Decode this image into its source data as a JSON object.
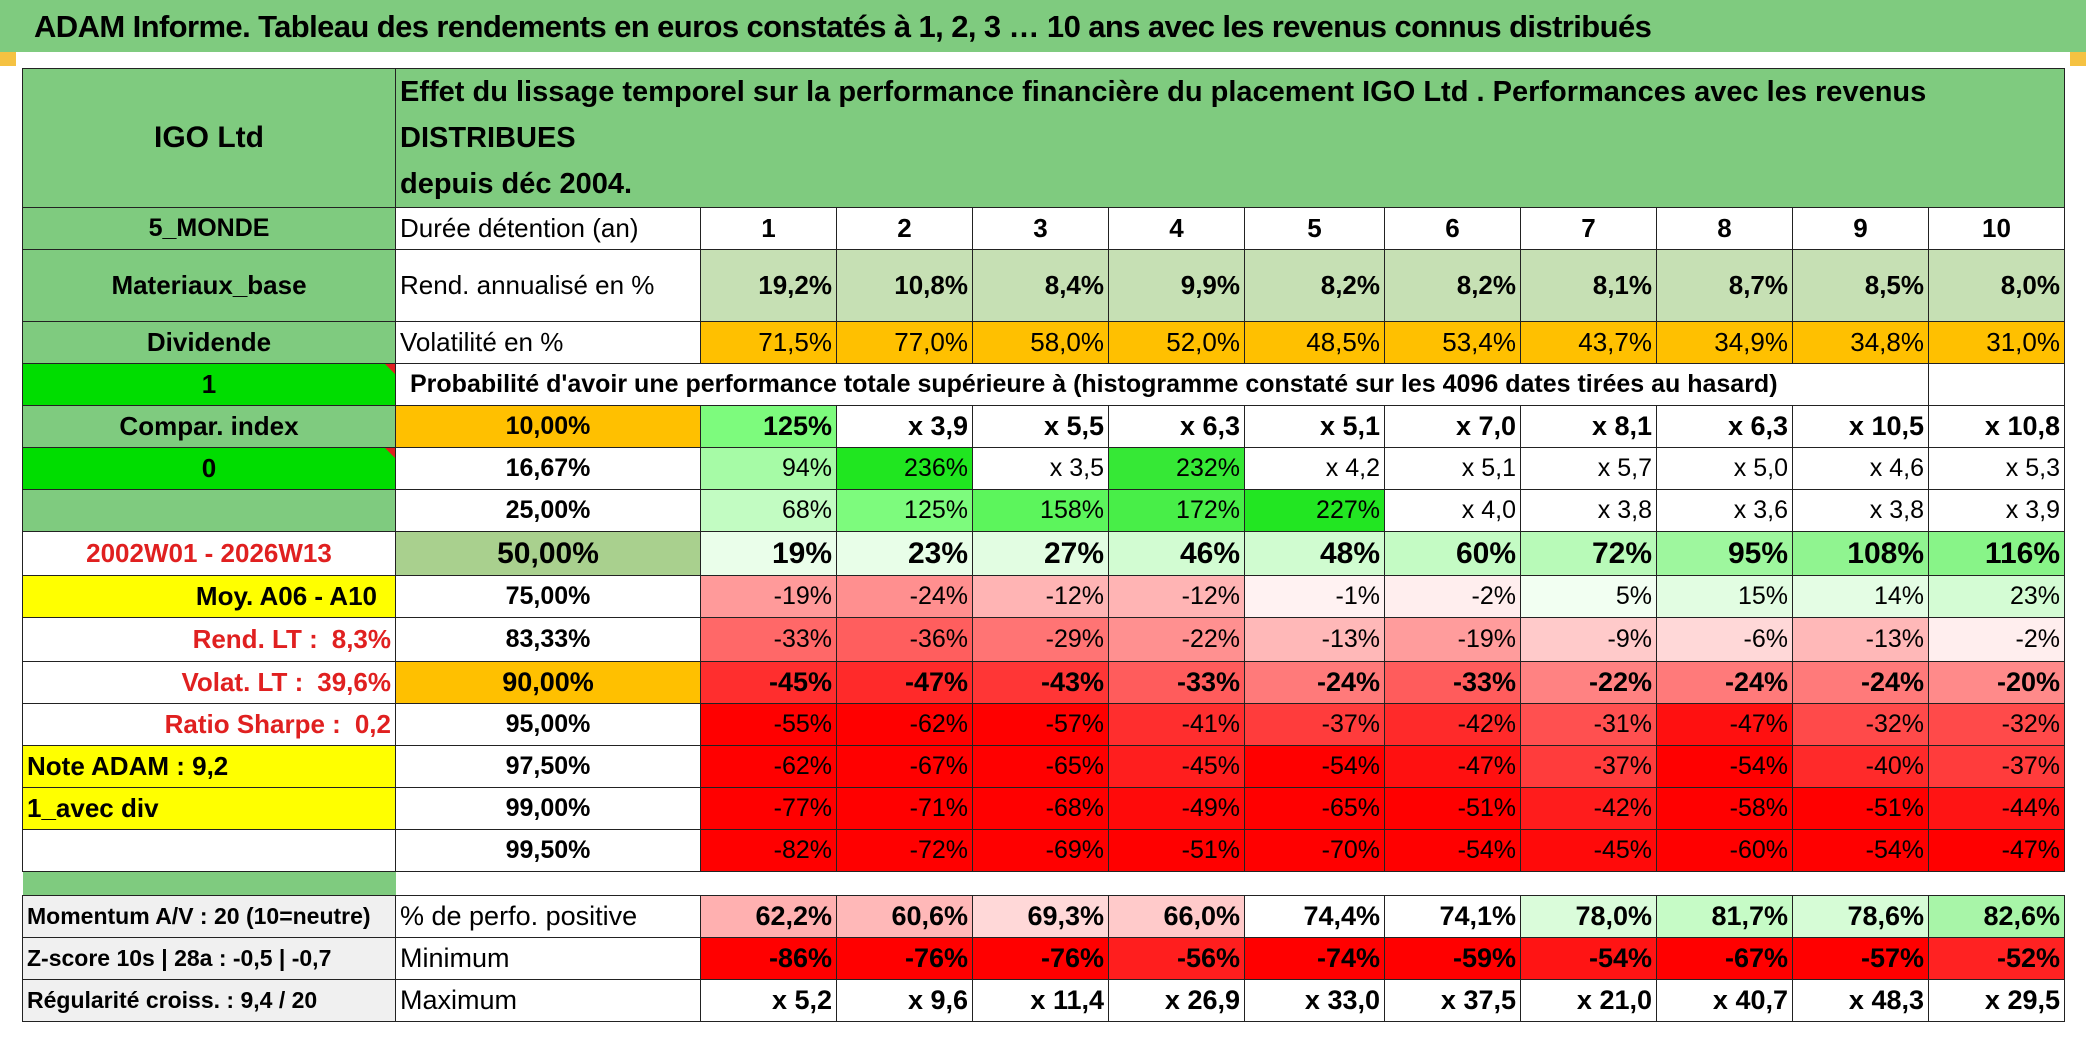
{
  "title": "ADAM Informe. Tableau des rendements en euros constatés à 1, 2, 3 … 10 ans avec les revenus connus distribués",
  "name": "IGO Ltd",
  "header_desc_line1": "Effet du lissage temporel sur la performance financière du placement IGO Ltd . Performances avec les revenus DISTRIBUES",
  "header_desc_line2": "depuis déc 2004.",
  "left": {
    "region": "5_MONDE",
    "sector": "Materiaux_base",
    "type": "Dividende",
    "flag1": "1",
    "compar": "Compar. index",
    "flag0": "0",
    "period": "2002W01 - 2026W13",
    "moy": "Moy. A06 - A10",
    "rend_lt_label": "Rend. LT :",
    "rend_lt": "8,3%",
    "volat_lt_label": "Volat. LT :",
    "volat_lt": "39,6%",
    "sharpe_label": "Ratio Sharpe :",
    "sharpe": "0,2",
    "note": "Note ADAM : 9,2",
    "avec_div": "1_avec div"
  },
  "labels": {
    "duree": "Durée détention (an)",
    "rend": "Rend. annualisé en %",
    "vol": "Volatilité en %",
    "proba": "Probabilité d'avoir une performance totale supérieure à (histogramme constaté sur les 4096 dates tirées au hasard)",
    "pos": "% de perfo. positive",
    "min": "Minimum",
    "max": "Maximum"
  },
  "years": [
    "1",
    "2",
    "3",
    "4",
    "5",
    "6",
    "7",
    "8",
    "9",
    "10"
  ],
  "rend": [
    "19,2%",
    "10,8%",
    "8,4%",
    "9,9%",
    "8,2%",
    "8,2%",
    "8,1%",
    "8,7%",
    "8,5%",
    "8,0%"
  ],
  "vol": [
    "71,5%",
    "77,0%",
    "58,0%",
    "52,0%",
    "48,5%",
    "53,4%",
    "43,7%",
    "34,9%",
    "34,8%",
    "31,0%"
  ],
  "percentiles": [
    {
      "p": "10,00%",
      "v": [
        "125%",
        "x 3,9",
        "x 5,5",
        "x 6,3",
        "x 5,1",
        "x 7,0",
        "x 8,1",
        "x 6,3",
        "x 10,5",
        "x 10,8"
      ]
    },
    {
      "p": "16,67%",
      "v": [
        "94%",
        "236%",
        "x 3,5",
        "232%",
        "x 4,2",
        "x 5,1",
        "x 5,7",
        "x 5,0",
        "x 4,6",
        "x 5,3"
      ]
    },
    {
      "p": "25,00%",
      "v": [
        "68%",
        "125%",
        "158%",
        "172%",
        "227%",
        "x 4,0",
        "x 3,8",
        "x 3,6",
        "x 3,8",
        "x 3,9"
      ]
    },
    {
      "p": "50,00%",
      "v": [
        "19%",
        "23%",
        "27%",
        "46%",
        "48%",
        "60%",
        "72%",
        "95%",
        "108%",
        "116%"
      ]
    },
    {
      "p": "75,00%",
      "v": [
        "-19%",
        "-24%",
        "-12%",
        "-12%",
        "-1%",
        "-2%",
        "5%",
        "15%",
        "14%",
        "23%"
      ]
    },
    {
      "p": "83,33%",
      "v": [
        "-33%",
        "-36%",
        "-29%",
        "-22%",
        "-13%",
        "-19%",
        "-9%",
        "-6%",
        "-13%",
        "-2%"
      ]
    },
    {
      "p": "90,00%",
      "v": [
        "-45%",
        "-47%",
        "-43%",
        "-33%",
        "-24%",
        "-33%",
        "-22%",
        "-24%",
        "-24%",
        "-20%"
      ]
    },
    {
      "p": "95,00%",
      "v": [
        "-55%",
        "-62%",
        "-57%",
        "-41%",
        "-37%",
        "-42%",
        "-31%",
        "-47%",
        "-32%",
        "-32%"
      ]
    },
    {
      "p": "97,50%",
      "v": [
        "-62%",
        "-67%",
        "-65%",
        "-45%",
        "-54%",
        "-47%",
        "-37%",
        "-54%",
        "-40%",
        "-37%"
      ]
    },
    {
      "p": "99,00%",
      "v": [
        "-77%",
        "-71%",
        "-68%",
        "-49%",
        "-65%",
        "-51%",
        "-42%",
        "-58%",
        "-51%",
        "-44%"
      ]
    },
    {
      "p": "99,50%",
      "v": [
        "-82%",
        "-72%",
        "-69%",
        "-51%",
        "-70%",
        "-54%",
        "-45%",
        "-60%",
        "-54%",
        "-47%"
      ]
    }
  ],
  "bottom_left": {
    "momentum": "Momentum A/V : 20 (10=neutre)",
    "zscore": "Z-score 10s | 28a : -0,5 | -0,7",
    "regularite": "Régularité croiss. : 9,4 / 20"
  },
  "pos": [
    "62,2%",
    "60,6%",
    "69,3%",
    "66,0%",
    "74,4%",
    "74,1%",
    "78,0%",
    "81,7%",
    "78,6%",
    "82,6%"
  ],
  "min": [
    "-86%",
    "-76%",
    "-76%",
    "-56%",
    "-74%",
    "-59%",
    "-54%",
    "-67%",
    "-57%",
    "-52%"
  ],
  "max": [
    "x 5,2",
    "x 9,6",
    "x 11,4",
    "x 26,9",
    "x 33,0",
    "x 37,5",
    "x 21,0",
    "x 40,7",
    "x 48,3",
    "x 29,5"
  ],
  "colors": {
    "label_green": "#7fcb7f",
    "rend_green": "#c6e0b4",
    "vol_orange": "#ffc000",
    "flag_green": "#00dd00",
    "yellow": "#ffff00",
    "red_text": "#e02020"
  },
  "cell_colors": {
    "percentiles": [
      [
        "#7dfb7d",
        "#ffffff",
        "#ffffff",
        "#ffffff",
        "#ffffff",
        "#ffffff",
        "#ffffff",
        "#ffffff",
        "#ffffff",
        "#ffffff"
      ],
      [
        "#a6fba6",
        "#20e620",
        "#ffffff",
        "#36e836",
        "#ffffff",
        "#ffffff",
        "#ffffff",
        "#ffffff",
        "#ffffff",
        "#ffffff"
      ],
      [
        "#c2fcc2",
        "#7dfb7d",
        "#5cf55c",
        "#48ee48",
        "#22e622",
        "#ffffff",
        "#ffffff",
        "#ffffff",
        "#ffffff",
        "#ffffff"
      ],
      [
        "#eafeea",
        "#e8fee8",
        "#e2fde2",
        "#d2fcd2",
        "#d0fcd0",
        "#c4fbc4",
        "#b8fab8",
        "#9ef79e",
        "#90f490",
        "#88f488"
      ],
      [
        "#ff9a9a",
        "#ff8f8f",
        "#ffb4b4",
        "#ffb4b4",
        "#fff2f2",
        "#ffeeee",
        "#f2fff2",
        "#e2fde2",
        "#e4fde4",
        "#d4fcd4"
      ],
      [
        "#ff6868",
        "#ff5e5e",
        "#ff7474",
        "#ff9090",
        "#ffb8b8",
        "#ff9c9c",
        "#ffcaca",
        "#ffd8d8",
        "#ffb8b8",
        "#ffeeee"
      ],
      [
        "#ff2e2e",
        "#ff2a2a",
        "#ff3636",
        "#ff5c5c",
        "#ff7a7a",
        "#ff5c5c",
        "#ff8282",
        "#ff7a7a",
        "#ff7a7a",
        "#ff8a8a"
      ],
      [
        "#ff0000",
        "#ff0000",
        "#ff0000",
        "#ff2e2e",
        "#ff3c3c",
        "#ff2a2a",
        "#ff5050",
        "#ff1010",
        "#ff4a4a",
        "#ff4a4a"
      ],
      [
        "#ff0000",
        "#ff0000",
        "#ff0000",
        "#ff1e1e",
        "#ff0000",
        "#ff1010",
        "#ff3c3c",
        "#ff0000",
        "#ff2a2a",
        "#ff3c3c"
      ],
      [
        "#ff0000",
        "#ff0000",
        "#ff0000",
        "#ff0a0a",
        "#ff0000",
        "#ff0000",
        "#ff1c1c",
        "#ff0000",
        "#ff0000",
        "#ff1414"
      ],
      [
        "#ff0000",
        "#ff0000",
        "#ff0000",
        "#ff0000",
        "#ff0000",
        "#ff0000",
        "#ff0a0a",
        "#ff0000",
        "#ff0000",
        "#ff0000"
      ]
    ],
    "pos": [
      "#ffb0b0",
      "#ffb8b8",
      "#ffd8d8",
      "#ffcaca",
      "#ffffff",
      "#ffffff",
      "#dafcda",
      "#c6fbc6",
      "#d6fcd6",
      "#a8f5a8"
    ],
    "min": [
      "#ff0000",
      "#ff0000",
      "#ff0000",
      "#ff1e1e",
      "#ff0000",
      "#ff0000",
      "#ff1414",
      "#ff0000",
      "#ff0000",
      "#ff2222"
    ]
  }
}
